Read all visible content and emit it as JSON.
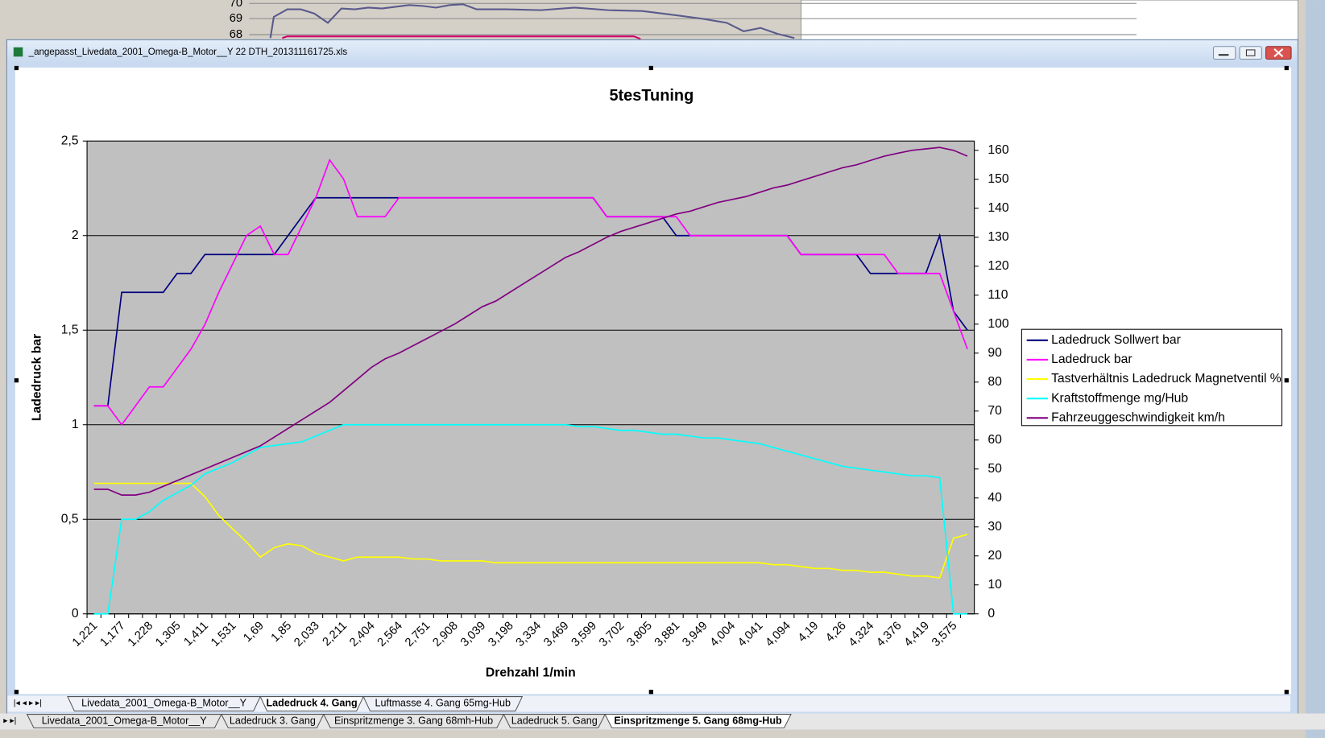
{
  "window": {
    "title": "_angepasst_Livedata_2001_Omega-B_Motor__Y 22 DTH_201311161725.xls"
  },
  "background_chart": {
    "yticks": [
      70,
      69,
      68
    ]
  },
  "chart_data": {
    "type": "line",
    "title": "5tesTuning",
    "x_label": "Drehzahl 1/min",
    "y_label": "Ladedruck bar",
    "categories": [
      "1,221",
      null,
      "1,177",
      null,
      "1,228",
      null,
      "1,305",
      null,
      "1,411",
      null,
      "1,531",
      null,
      "1,69",
      null,
      "1,85",
      null,
      "2,033",
      null,
      "2,211",
      null,
      "2,404",
      null,
      "2,564",
      null,
      "2,751",
      null,
      "2,908",
      null,
      "3,039",
      null,
      "3,198",
      null,
      "3,334",
      null,
      "3,469",
      null,
      "3,599",
      null,
      "3,702",
      null,
      "3,805",
      null,
      "3,881",
      null,
      "3,949",
      null,
      "4,004",
      null,
      "4,041",
      null,
      "4,094",
      null,
      "4,19",
      null,
      "4,26",
      null,
      "4,324",
      null,
      "4,376",
      null,
      "4,419",
      null,
      "3,575",
      null
    ],
    "ylim": [
      0,
      2.5
    ],
    "yticks": [
      0,
      {
        "value": 0.5,
        "label": "0,5"
      },
      1,
      {
        "value": 1.5,
        "label": "1,5"
      },
      2,
      {
        "value": 2.5,
        "label": "2,5"
      }
    ],
    "y2lim": [
      0,
      160
    ],
    "y2ticks": [
      0,
      10,
      20,
      30,
      40,
      50,
      60,
      70,
      80,
      90,
      100,
      110,
      120,
      130,
      140,
      150,
      160
    ],
    "grid": true,
    "plot_background": "#c0c0c0",
    "legend": "right",
    "series": [
      {
        "name": "Ladedruck Sollwert bar",
        "color": "#000080",
        "values": [
          1.1,
          1.1,
          1.7,
          1.7,
          1.7,
          1.7,
          1.8,
          1.8,
          1.9,
          1.9,
          1.9,
          1.9,
          1.9,
          1.9,
          2.0,
          2.1,
          2.2,
          2.2,
          2.2,
          2.2,
          2.2,
          2.2,
          2.2,
          2.2,
          2.2,
          2.2,
          2.2,
          2.2,
          2.2,
          2.2,
          2.2,
          2.2,
          2.2,
          2.2,
          2.2,
          2.2,
          2.2,
          2.1,
          2.1,
          2.1,
          2.1,
          2.1,
          2.0,
          2.0,
          2.0,
          2.0,
          2.0,
          2.0,
          2.0,
          2.0,
          2.0,
          1.9,
          1.9,
          1.9,
          1.9,
          1.9,
          1.8,
          1.8,
          1.8,
          1.8,
          1.8,
          2.0,
          1.6,
          1.5
        ]
      },
      {
        "name": "Ladedruck bar",
        "color": "#ff00ff",
        "values": [
          1.1,
          1.1,
          1.0,
          1.1,
          1.2,
          1.2,
          1.3,
          1.4,
          1.53,
          1.7,
          1.85,
          2.0,
          2.05,
          1.9,
          1.9,
          2.05,
          2.2,
          2.4,
          2.3,
          2.1,
          2.1,
          2.1,
          2.2,
          2.2,
          2.2,
          2.2,
          2.2,
          2.2,
          2.2,
          2.2,
          2.2,
          2.2,
          2.2,
          2.2,
          2.2,
          2.2,
          2.2,
          2.1,
          2.1,
          2.1,
          2.1,
          2.1,
          2.1,
          2.0,
          2.0,
          2.0,
          2.0,
          2.0,
          2.0,
          2.0,
          2.0,
          1.9,
          1.9,
          1.9,
          1.9,
          1.9,
          1.9,
          1.9,
          1.8,
          1.8,
          1.8,
          1.8,
          1.6,
          1.4
        ]
      },
      {
        "name": "Tastverhältnis Ladedruck Magnetventil %",
        "color": "#ffff00",
        "values": [
          0.69,
          0.69,
          0.69,
          0.69,
          0.69,
          0.69,
          0.69,
          0.69,
          0.62,
          0.52,
          0.45,
          0.38,
          0.3,
          0.35,
          0.37,
          0.36,
          0.32,
          0.3,
          0.28,
          0.3,
          0.3,
          0.3,
          0.3,
          0.29,
          0.29,
          0.28,
          0.28,
          0.28,
          0.28,
          0.27,
          0.27,
          0.27,
          0.27,
          0.27,
          0.27,
          0.27,
          0.27,
          0.27,
          0.27,
          0.27,
          0.27,
          0.27,
          0.27,
          0.27,
          0.27,
          0.27,
          0.27,
          0.27,
          0.27,
          0.26,
          0.26,
          0.25,
          0.24,
          0.24,
          0.23,
          0.23,
          0.22,
          0.22,
          0.21,
          0.2,
          0.2,
          0.19,
          0.4,
          0.42
        ]
      },
      {
        "name": "Kraftstoffmenge mg/Hub",
        "color": "#00ffff",
        "values": [
          0,
          0,
          0.5,
          0.5,
          0.54,
          0.6,
          0.64,
          0.68,
          0.74,
          0.77,
          0.8,
          0.84,
          0.88,
          0.89,
          0.9,
          0.91,
          0.94,
          0.97,
          1.0,
          1.0,
          1.0,
          1.0,
          1.0,
          1.0,
          1.0,
          1.0,
          1.0,
          1.0,
          1.0,
          1.0,
          1.0,
          1.0,
          1.0,
          1.0,
          1.0,
          0.99,
          0.99,
          0.98,
          0.97,
          0.97,
          0.96,
          0.95,
          0.95,
          0.94,
          0.93,
          0.93,
          0.92,
          0.91,
          0.9,
          0.88,
          0.86,
          0.84,
          0.82,
          0.8,
          0.78,
          0.77,
          0.76,
          0.75,
          0.74,
          0.73,
          0.73,
          0.72,
          0,
          0
        ]
      },
      {
        "name": "Fahrzeuggeschwindigkeit km/h",
        "color": "#800080",
        "axis": "y2",
        "values": [
          43,
          43,
          41,
          41,
          42,
          44,
          46,
          48,
          50,
          52,
          54,
          56,
          58,
          61,
          64,
          67,
          70,
          73,
          77,
          81,
          85,
          88,
          90,
          92.5,
          95,
          97.5,
          100,
          103,
          106,
          108,
          111,
          114,
          117,
          120,
          123,
          125,
          127.5,
          130,
          132,
          133.5,
          135,
          136.5,
          138,
          139,
          140.5,
          142,
          143,
          144,
          145.5,
          147,
          148,
          149.5,
          151,
          152.5,
          154,
          155,
          156.5,
          158,
          159,
          160,
          160.5,
          161,
          160,
          158
        ]
      }
    ]
  },
  "sheet_tabs": [
    "Livedata_2001_Omega-B_Motor__Y",
    "Ladedruck 4. Gang",
    "Luftmasse 4. Gang 65mg-Hub"
  ],
  "background_tabs": [
    "Livedata_2001_Omega-B_Motor__Y",
    "Ladedruck 3. Gang",
    "Einspritzmenge 3. Gang 68mh-Hub",
    "Ladedruck 5. Gang",
    "Einspritzmenge 5. Gang 68mg-Hub"
  ]
}
